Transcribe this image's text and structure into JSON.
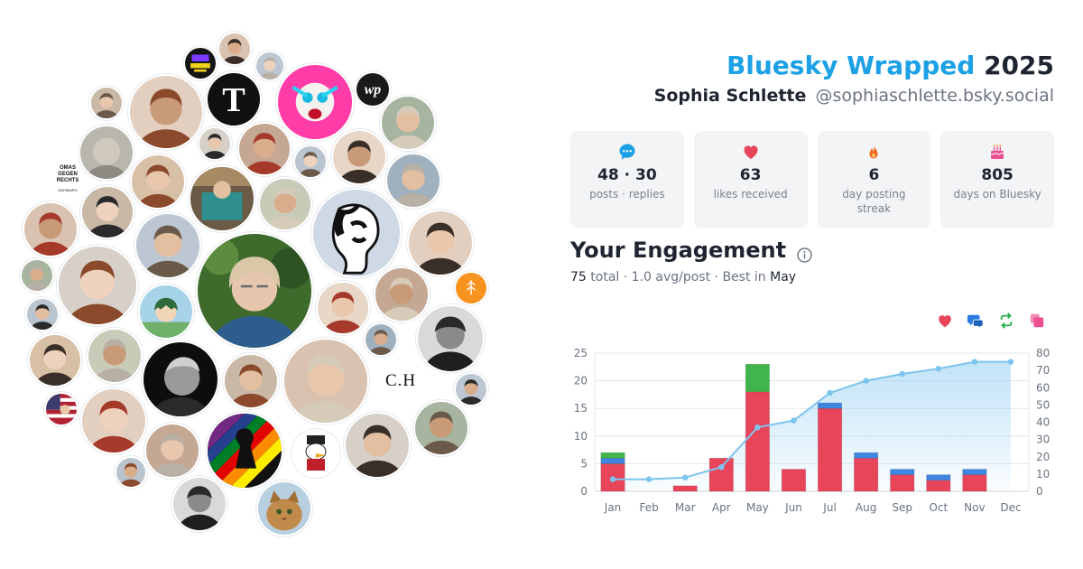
{
  "header": {
    "brand": "Bluesky Wrapped",
    "year": "2025",
    "user_name": "Sophia Schlette",
    "handle": "@sophiaschlette.bsky.social"
  },
  "stats": [
    {
      "icon": "chat-bubble-icon",
      "value": "48 · 30",
      "label": "posts · replies",
      "color": "#1da1e6"
    },
    {
      "icon": "heart-icon",
      "value": "63",
      "label": "likes received",
      "color": "#e8455a"
    },
    {
      "icon": "flame-icon",
      "value": "6",
      "label": "day posting streak",
      "color": "#f26a22"
    },
    {
      "icon": "cake-icon",
      "value": "805",
      "label": "days on Bluesky",
      "color": "#ec4f8f"
    }
  ],
  "engagement": {
    "title": "Your Engagement",
    "total": "75",
    "total_word": "total",
    "avg": "1.0 avg/post",
    "best_prefix": "Best in",
    "best_month": "May"
  },
  "legend": [
    {
      "icon": "heart-icon",
      "color": "#e8455a"
    },
    {
      "icon": "reply-icon",
      "color": "#2b7be0"
    },
    {
      "icon": "repost-icon",
      "color": "#22b04b"
    },
    {
      "icon": "quote-icon",
      "color": "#ec4f8f"
    }
  ],
  "avatars": {
    "logos": {
      "omas": [
        "OMAS",
        "GEGEN",
        "RECHTS"
      ],
      "omas_city": "DUISBURG",
      "ch": "C.H"
    }
  },
  "chart_data": {
    "type": "bar",
    "categories": [
      "Jan",
      "Feb",
      "Mar",
      "Apr",
      "May",
      "Jun",
      "Jul",
      "Aug",
      "Sep",
      "Oct",
      "Nov",
      "Dec"
    ],
    "series": [
      {
        "values": [
          5,
          0,
          1,
          6,
          18,
          4,
          15,
          6,
          3,
          2,
          3,
          0
        ],
        "color": "#e8455a"
      },
      {
        "values": [
          1,
          0,
          0,
          0,
          0,
          0,
          1,
          1,
          1,
          1,
          1,
          0
        ],
        "color": "#3f86e2"
      },
      {
        "values": [
          1,
          0,
          0,
          0,
          5,
          0,
          0,
          0,
          0,
          0,
          0,
          0
        ],
        "color": "#3fb54b"
      }
    ],
    "cumulative": [
      7,
      7,
      8,
      14,
      37,
      41,
      57,
      64,
      68,
      71,
      75,
      75
    ],
    "ylim": [
      0,
      25
    ],
    "yticks": [
      0,
      5,
      10,
      15,
      20,
      25
    ],
    "y2lim": [
      0,
      80
    ],
    "y2ticks": [
      0,
      10,
      20,
      30,
      40,
      50,
      60,
      70,
      80
    ],
    "line_color": "#7cc4ee",
    "grid": true
  }
}
